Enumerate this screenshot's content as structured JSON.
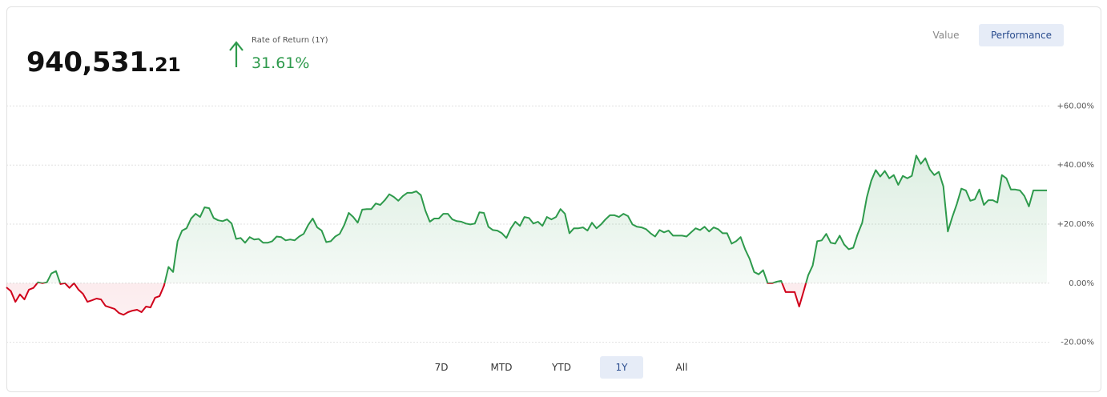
{
  "header": {
    "value_integer": "940,531",
    "value_fraction": ".21",
    "return_label": "Rate of Return (1Y)",
    "return_value": "31.61%"
  },
  "view_toggle": {
    "options": [
      "Value",
      "Performance"
    ],
    "selected": 1
  },
  "ranges": {
    "options": [
      "7D",
      "MTD",
      "YTD",
      "1Y",
      "All"
    ],
    "selected": 3
  },
  "chart_data": {
    "type": "line",
    "values": [
      -1.4,
      -2.7,
      -6.3,
      -3.8,
      -5.5,
      -2.2,
      -1.6,
      0.3,
      0,
      0.3,
      3.3,
      4.1,
      -0.3,
      0,
      -1.6,
      0,
      -2.2,
      -3.6,
      -6.3,
      -5.8,
      -5.2,
      -5.5,
      -7.7,
      -8.2,
      -8.7,
      -10.1,
      -10.7,
      -9.8,
      -9.3,
      -9.0,
      -9.8,
      -7.9,
      -8.2,
      -4.9,
      -4.4,
      -0.8,
      5.5,
      3.8,
      14.2,
      17.8,
      18.6,
      21.9,
      23.5,
      22.4,
      25.7,
      25.4,
      22.1,
      21.3,
      21.0,
      21.6,
      20.2,
      15.0,
      15.3,
      13.7,
      15.6,
      14.8,
      15.0,
      13.7,
      13.7,
      14.2,
      15.8,
      15.6,
      14.5,
      14.8,
      14.5,
      15.8,
      16.7,
      19.7,
      21.9,
      18.9,
      17.8,
      13.9,
      14.2,
      15.8,
      16.7,
      19.7,
      23.8,
      22.4,
      20.5,
      24.9,
      25.1,
      25.1,
      27.0,
      26.5,
      28.1,
      30.1,
      29.2,
      27.9,
      29.5,
      30.6,
      30.6,
      31.1,
      29.8,
      24.6,
      20.8,
      21.9,
      21.9,
      23.5,
      23.5,
      21.6,
      21.0,
      20.8,
      20.2,
      19.9,
      20.2,
      24.0,
      23.8,
      19.1,
      18.0,
      17.8,
      16.9,
      15.3,
      18.6,
      20.8,
      19.4,
      22.4,
      22.1,
      20.2,
      20.8,
      19.4,
      22.4,
      21.6,
      22.4,
      25.1,
      23.5,
      16.9,
      18.6,
      18.6,
      18.9,
      17.8,
      20.5,
      18.6,
      19.9,
      21.6,
      23.0,
      23.0,
      22.4,
      23.5,
      22.7,
      19.9,
      19.1,
      18.9,
      18.3,
      16.9,
      15.8,
      18.0,
      17.2,
      17.8,
      16.1,
      16.1,
      16.1,
      15.8,
      17.2,
      18.6,
      18.0,
      19.1,
      17.5,
      18.9,
      18.3,
      16.9,
      16.9,
      13.4,
      14.2,
      15.6,
      11.5,
      8.2,
      3.8,
      3.0,
      4.4,
      0,
      0,
      0.5,
      0.8,
      -3.0,
      -3.0,
      -3.0,
      -7.9,
      -2.7,
      2.7,
      6.0,
      14.2,
      14.5,
      16.7,
      13.7,
      13.4,
      16.1,
      13.1,
      11.5,
      12.0,
      16.7,
      20.5,
      29.0,
      34.7,
      38.3,
      36.1,
      38.0,
      35.5,
      36.6,
      33.3,
      36.3,
      35.5,
      36.3,
      43.2,
      40.4,
      42.3,
      38.5,
      36.6,
      37.7,
      32.8,
      17.5,
      22.4,
      26.8,
      32.0,
      31.4,
      27.9,
      28.4,
      31.7,
      26.5,
      28.1,
      28.1,
      27.3,
      36.6,
      35.5,
      31.7,
      31.7,
      31.4,
      29.5,
      26.0,
      31.4,
      31.4,
      31.4,
      31.4
    ],
    "color_positive": "#2e9a4c",
    "color_negative": "#d0021b",
    "ylim": [
      -22,
      62
    ],
    "yticks": [
      {
        "value": 60,
        "label": "+60.00%"
      },
      {
        "value": 40,
        "label": "+40.00%"
      },
      {
        "value": 20,
        "label": "+20.00%"
      },
      {
        "value": 0,
        "label": "0.00%"
      },
      {
        "value": -20,
        "label": "-20.00%"
      }
    ],
    "grid": true
  }
}
